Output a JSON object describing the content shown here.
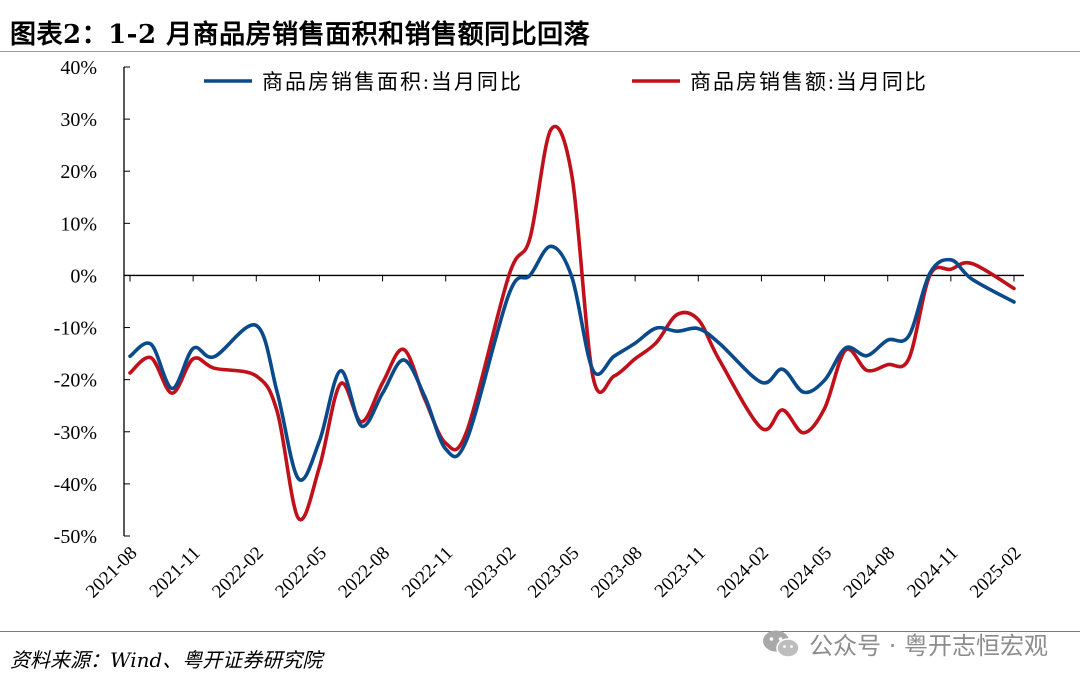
{
  "title": "图表2：1-2 月商品房销售面积和销售额同比回落",
  "source": "资料来源：Wind、粤开证券研究院",
  "watermark": {
    "icon": "wechat-icon",
    "text": "公众号 · 粤开志恒宏观"
  },
  "chart_data": {
    "type": "line",
    "title": "图表2：1-2 月商品房销售面积和销售额同比回落",
    "ylim": [
      -50,
      40
    ],
    "y_ticks": [
      40,
      30,
      20,
      10,
      0,
      -10,
      -20,
      -30,
      -40,
      -50
    ],
    "y_tick_labels": [
      "40%",
      "30%",
      "20%",
      "10%",
      "0%",
      "-10%",
      "-20%",
      "-30%",
      "-40%",
      "-50%"
    ],
    "x_tick_labels": [
      "2021-08",
      "2021-11",
      "2022-02",
      "2022-05",
      "2022-08",
      "2022-11",
      "2023-02",
      "2023-05",
      "2023-08",
      "2023-11",
      "2024-02",
      "2024-05",
      "2024-08",
      "2024-11",
      "2025-02"
    ],
    "x": [
      "2021-08",
      "2021-09",
      "2021-10",
      "2021-11",
      "2021-12",
      "2022-02",
      "2022-03",
      "2022-04",
      "2022-05",
      "2022-06",
      "2022-07",
      "2022-08",
      "2022-09",
      "2022-10",
      "2022-11",
      "2022-12",
      "2023-02",
      "2023-03",
      "2023-04",
      "2023-05",
      "2023-06",
      "2023-07",
      "2023-08",
      "2023-09",
      "2023-10",
      "2023-11",
      "2023-12",
      "2024-02",
      "2024-03",
      "2024-04",
      "2024-05",
      "2024-06",
      "2024-07",
      "2024-08",
      "2024-09",
      "2024-10",
      "2024-11",
      "2024-12",
      "2025-02"
    ],
    "grid": false,
    "legend": "top",
    "series": [
      {
        "name": "商品房销售面积:当月同比",
        "color": "#0b4a8a",
        "values": [
          -15.5,
          -13.2,
          -21.7,
          -14.0,
          -15.6,
          -9.6,
          -22.5,
          -39.0,
          -31.8,
          -18.3,
          -28.9,
          -22.6,
          -16.2,
          -23.2,
          -33.3,
          -31.5,
          -3.6,
          0.0,
          5.6,
          -0.4,
          -18.2,
          -15.5,
          -13.0,
          -10.1,
          -10.7,
          -10.2,
          -13.0,
          -20.5,
          -18.0,
          -22.4,
          -20.1,
          -13.9,
          -15.4,
          -12.4,
          -11.6,
          0.4,
          3.0,
          -0.7,
          -5.1
        ]
      },
      {
        "name": "商品房销售额:当月同比",
        "color": "#c0111b",
        "values": [
          -18.7,
          -15.8,
          -22.6,
          -16.0,
          -17.8,
          -19.3,
          -26.2,
          -46.6,
          -36.8,
          -20.8,
          -28.1,
          -20.6,
          -14.2,
          -23.7,
          -32.2,
          -29.9,
          0.0,
          7.1,
          28.0,
          19.0,
          -19.5,
          -19.3,
          -16.0,
          -12.9,
          -7.5,
          -8.5,
          -16.2,
          -29.3,
          -25.8,
          -30.2,
          -25.5,
          -14.3,
          -18.2,
          -17.1,
          -16.0,
          0.0,
          1.2,
          2.3,
          -2.5
        ]
      }
    ]
  }
}
